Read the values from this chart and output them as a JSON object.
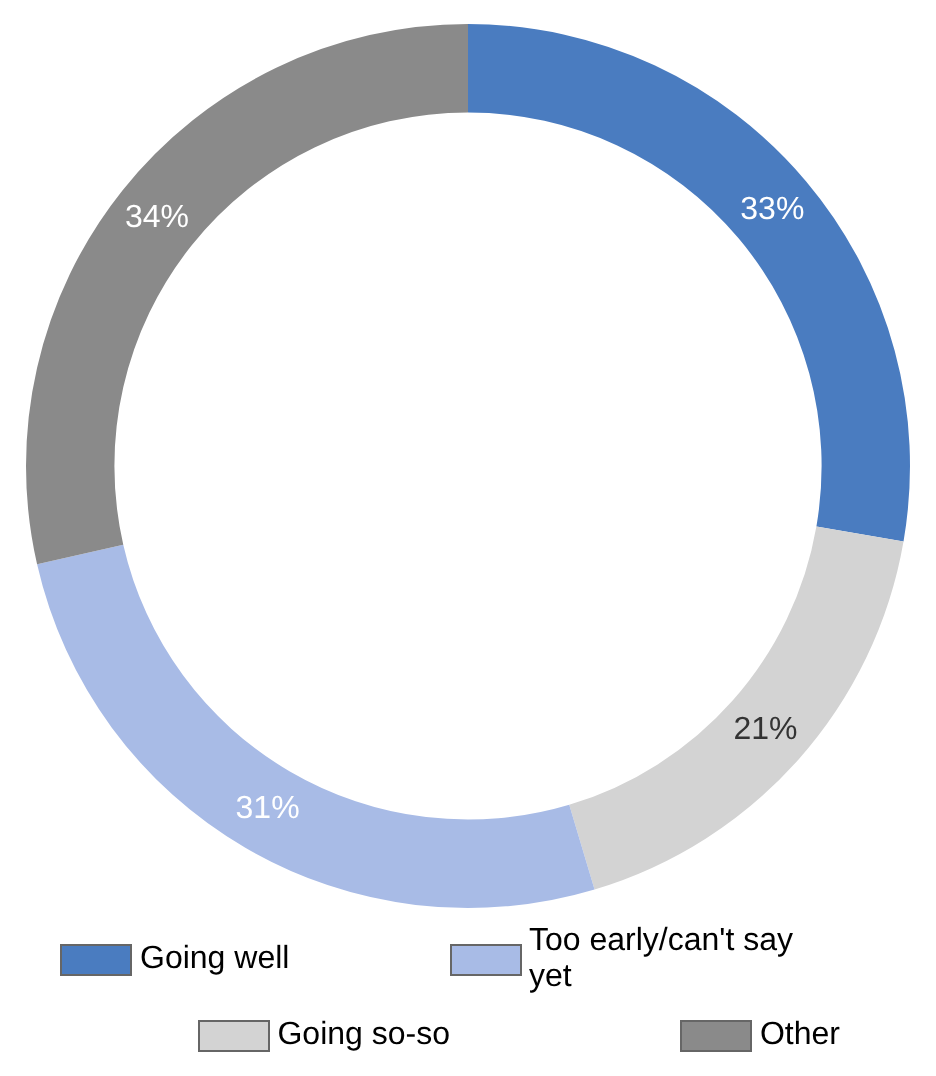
{
  "chart_data": {
    "type": "donut",
    "categories": [
      "Going well",
      "Going so-so",
      "Too early/can't say yet",
      "Other"
    ],
    "values": [
      33,
      21,
      31,
      34
    ],
    "colors": [
      "#4a7cc0",
      "#d3d3d3",
      "#a8bbe6",
      "#8a8a8a"
    ],
    "value_labels": [
      "33%",
      "21%",
      "31%",
      "34%"
    ],
    "legend": "bottom"
  }
}
